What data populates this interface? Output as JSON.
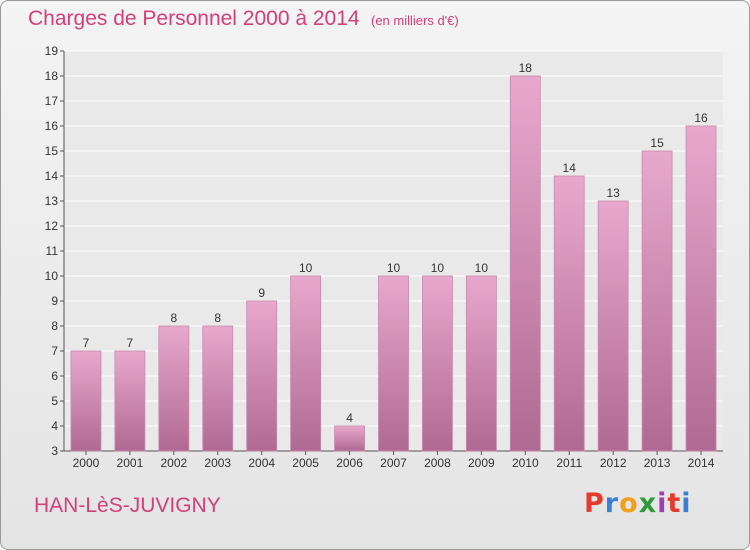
{
  "header": {
    "title": "Charges de Personnel 2000 à 2014",
    "subtitle": "(en milliers d'€)"
  },
  "footer": {
    "commune": "HAN-LèS-JUVIGNY",
    "logo": "Proxiti"
  },
  "colors": {
    "accent": "#d2407a",
    "bar_top": "#e8a8cc",
    "bar_bottom": "#b06a92",
    "logo": [
      "#e53b2c",
      "#3b7fd4",
      "#f2a01a",
      "#2f9a3c",
      "#9b3fb5",
      "#e53b2c",
      "#3b7fd4"
    ]
  },
  "chart_data": {
    "type": "bar",
    "title": "Charges de Personnel 2000 à 2014",
    "ylabel": "",
    "xlabel": "",
    "categories": [
      "2000",
      "2001",
      "2002",
      "2003",
      "2004",
      "2005",
      "2006",
      "2007",
      "2008",
      "2009",
      "2010",
      "2011",
      "2012",
      "2013",
      "2014"
    ],
    "values": [
      7,
      7,
      8,
      8,
      9,
      10,
      4,
      10,
      10,
      10,
      18,
      14,
      13,
      15,
      16
    ],
    "ylim": [
      3,
      19
    ],
    "yticks": [
      3,
      4,
      5,
      6,
      7,
      8,
      9,
      10,
      11,
      12,
      13,
      14,
      15,
      16,
      17,
      18,
      19
    ],
    "grid": true,
    "data_labels": true
  }
}
